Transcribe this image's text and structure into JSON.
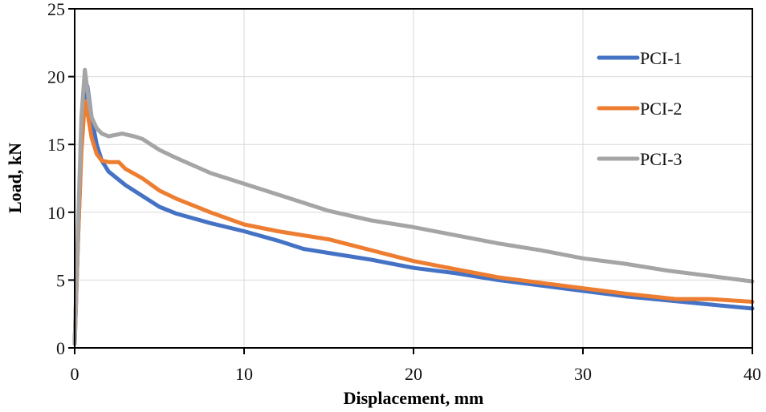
{
  "chart_data": {
    "type": "line",
    "title": "",
    "xlabel": "Displacement, mm",
    "ylabel": "Load, kN",
    "xlim": [
      0,
      40
    ],
    "ylim": [
      0,
      25
    ],
    "xticks": [
      0,
      10,
      20,
      30,
      40
    ],
    "yticks": [
      0,
      5,
      10,
      15,
      20,
      25
    ],
    "xtick_labels": [
      "0",
      "10",
      "20",
      "30",
      "40"
    ],
    "ytick_labels": [
      "0",
      "5",
      "10",
      "15",
      "20",
      "25"
    ],
    "grid": true,
    "legend_position": "top-right",
    "series": [
      {
        "name": "PCI-1",
        "color": "#4472C4",
        "x": [
          0,
          0.2,
          0.4,
          0.6,
          0.75,
          1.0,
          1.3,
          1.6,
          2.0,
          3.0,
          4.0,
          5.0,
          6.0,
          8.0,
          10.0,
          12.0,
          13.5,
          15.0,
          17.5,
          20.0,
          22.5,
          25.0,
          27.5,
          30.0,
          32.5,
          35.0,
          37.5,
          40.0
        ],
        "y": [
          0.3,
          8.0,
          15.0,
          18.7,
          19.3,
          17.0,
          15.0,
          13.8,
          13.0,
          12.0,
          11.2,
          10.4,
          9.9,
          9.2,
          8.6,
          7.9,
          7.3,
          7.0,
          6.5,
          5.9,
          5.5,
          5.0,
          4.6,
          4.2,
          3.8,
          3.5,
          3.2,
          2.9
        ]
      },
      {
        "name": "PCI-2",
        "color": "#ED7D31",
        "x": [
          0,
          0.2,
          0.4,
          0.6,
          0.8,
          1.0,
          1.3,
          1.6,
          2.0,
          2.6,
          3.0,
          4.0,
          5.0,
          6.0,
          8.0,
          10.0,
          12.0,
          13.5,
          15.0,
          17.5,
          20.0,
          22.5,
          25.0,
          27.5,
          30.0,
          32.5,
          35.5,
          37.5,
          40.0
        ],
        "y": [
          0.3,
          8.0,
          14.5,
          18.2,
          17.0,
          15.5,
          14.3,
          13.8,
          13.7,
          13.7,
          13.2,
          12.5,
          11.6,
          11.0,
          10.0,
          9.1,
          8.6,
          8.3,
          8.0,
          7.2,
          6.4,
          5.8,
          5.2,
          4.8,
          4.4,
          4.0,
          3.6,
          3.6,
          3.4
        ]
      },
      {
        "name": "PCI-3",
        "color": "#A5A5A5",
        "x": [
          0,
          0.2,
          0.4,
          0.6,
          0.8,
          1.0,
          1.3,
          1.6,
          2.0,
          2.8,
          3.5,
          4.0,
          5.0,
          6.0,
          8.0,
          10.0,
          12.0,
          15.0,
          17.5,
          20.0,
          22.5,
          25.0,
          27.5,
          30.0,
          32.5,
          35.0,
          37.5,
          40.0
        ],
        "y": [
          0.3,
          9.0,
          17.0,
          20.5,
          18.5,
          17.0,
          16.2,
          15.8,
          15.6,
          15.8,
          15.6,
          15.4,
          14.6,
          14.0,
          12.9,
          12.1,
          11.3,
          10.1,
          9.4,
          8.9,
          8.3,
          7.7,
          7.2,
          6.6,
          6.2,
          5.7,
          5.3,
          4.9
        ]
      }
    ]
  }
}
